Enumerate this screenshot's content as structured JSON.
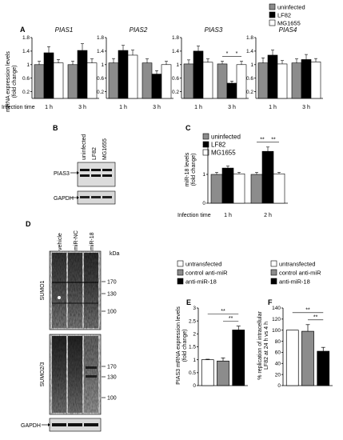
{
  "panels": {
    "A": {
      "label": "A",
      "ylabel": [
        "mRNA expression levels",
        "(fold change)"
      ],
      "legend": [
        {
          "name": "uninfected",
          "color": "#8c8c8c"
        },
        {
          "name": "LF82",
          "color": "#000000"
        },
        {
          "name": "MG1655",
          "color": "#ffffff"
        }
      ],
      "infection_label": "Infection time",
      "time_labels": [
        "1 h",
        "3 h"
      ]
    },
    "B": {
      "label": "B",
      "lanes": [
        "uninfected",
        "LF82",
        "MG1655"
      ],
      "bands": [
        "PIAS3",
        "GAPDH"
      ]
    },
    "C": {
      "label": "C",
      "ylabel": [
        "miR-18 levels",
        "(fold change)"
      ],
      "legend": [
        {
          "name": "uninfected",
          "color": "#8c8c8c"
        },
        {
          "name": "LF82",
          "color": "#000000"
        },
        {
          "name": "MG1655",
          "color": "#ffffff"
        }
      ],
      "infection_label": "Infection time",
      "time_labels": [
        "1 h",
        "2 h"
      ]
    },
    "D": {
      "label": "D",
      "lanes": [
        "vehicle",
        "miR-NC",
        "miR-18"
      ],
      "kda": "kDa",
      "blot_labels": [
        "SUMO1",
        "SUMO2/3",
        "GAPDH"
      ],
      "markers_top": [
        "170",
        "130",
        "100"
      ],
      "markers_bottom": [
        "170",
        "130",
        "100"
      ]
    },
    "E": {
      "label": "E",
      "ylabel": [
        "PIAS3 mRNA expression levels",
        "(fold change)"
      ],
      "legend": [
        {
          "name": "untransfected",
          "color": "#ffffff"
        },
        {
          "name": "control anti-miR",
          "color": "#8c8c8c"
        },
        {
          "name": "anti-miR-18",
          "color": "#000000"
        }
      ]
    },
    "F": {
      "label": "F",
      "ylabel": [
        "% replication of intracellular",
        "LF82 at 24 h vs 4 h"
      ],
      "legend": [
        {
          "name": "untransfected",
          "color": "#ffffff"
        },
        {
          "name": "control anti-miR",
          "color": "#8c8c8c"
        },
        {
          "name": "anti-miR-18",
          "color": "#000000"
        }
      ]
    }
  },
  "chart_data": [
    {
      "type": "bar",
      "panel": "A",
      "title": "PIAS1",
      "categories": [
        "1 h",
        "3 h"
      ],
      "ylim": [
        0,
        1.8
      ],
      "yticks": [
        "0.2",
        "0.6",
        "1",
        "1.4",
        "1.8"
      ],
      "series": [
        {
          "name": "uninfected",
          "values": [
            1.0,
            1.0
          ],
          "errors": [
            0.1,
            0.1
          ]
        },
        {
          "name": "LF82",
          "values": [
            1.35,
            1.42
          ],
          "errors": [
            0.18,
            0.2
          ]
        },
        {
          "name": "MG1655",
          "values": [
            1.05,
            1.05
          ],
          "errors": [
            0.1,
            0.12
          ]
        }
      ],
      "significance": []
    },
    {
      "type": "bar",
      "panel": "A",
      "title": "PIAS2",
      "categories": [
        "1 h",
        "3 h"
      ],
      "ylim": [
        0,
        1.8
      ],
      "yticks": [
        "0.2",
        "0.6",
        "1",
        "1.4",
        "1.8"
      ],
      "series": [
        {
          "name": "uninfected",
          "values": [
            1.05,
            1.05
          ],
          "errors": [
            0.13,
            0.12
          ]
        },
        {
          "name": "LF82",
          "values": [
            1.42,
            0.72
          ],
          "errors": [
            0.15,
            0.1
          ]
        },
        {
          "name": "MG1655",
          "values": [
            1.28,
            1.0
          ],
          "errors": [
            0.15,
            0.1
          ]
        }
      ],
      "significance": []
    },
    {
      "type": "bar",
      "panel": "A",
      "title": "PIAS3",
      "categories": [
        "1 h",
        "3 h"
      ],
      "ylim": [
        0,
        1.8
      ],
      "yticks": [
        "0.2",
        "0.6",
        "1",
        "1.4",
        "1.8"
      ],
      "series": [
        {
          "name": "uninfected",
          "values": [
            1.02,
            1.02
          ],
          "errors": [
            0.12,
            0.08
          ]
        },
        {
          "name": "LF82",
          "values": [
            1.4,
            0.45
          ],
          "errors": [
            0.15,
            0.06
          ]
        },
        {
          "name": "MG1655",
          "values": [
            1.07,
            1.0
          ],
          "errors": [
            0.1,
            0.1
          ]
        }
      ],
      "significance": [
        {
          "from": [
            1,
            0
          ],
          "to": [
            1,
            1
          ],
          "label": "*"
        },
        {
          "from": [
            1,
            1
          ],
          "to": [
            1,
            2
          ],
          "label": "*"
        }
      ]
    },
    {
      "type": "bar",
      "panel": "A",
      "title": "PIAS4",
      "categories": [
        "1 h",
        "3 h"
      ],
      "ylim": [
        0,
        1.8
      ],
      "yticks": [
        "0.2",
        "0.6",
        "1",
        "1.4",
        "1.8"
      ],
      "series": [
        {
          "name": "uninfected",
          "values": [
            1.05,
            1.05
          ],
          "errors": [
            0.15,
            0.12
          ]
        },
        {
          "name": "LF82",
          "values": [
            1.28,
            1.15
          ],
          "errors": [
            0.15,
            0.15
          ]
        },
        {
          "name": "MG1655",
          "values": [
            1.02,
            1.08
          ],
          "errors": [
            0.1,
            0.1
          ]
        }
      ],
      "significance": []
    },
    {
      "type": "bar",
      "panel": "C",
      "title": "",
      "categories": [
        "1 h",
        "2 h"
      ],
      "ylim": [
        0,
        2
      ],
      "yticks": [
        "0",
        "1",
        "2"
      ],
      "series": [
        {
          "name": "uninfected",
          "values": [
            1.0,
            1.0
          ],
          "errors": [
            0.07,
            0.07
          ]
        },
        {
          "name": "LF82",
          "values": [
            1.22,
            1.8
          ],
          "errors": [
            0.07,
            0.15
          ]
        },
        {
          "name": "MG1655",
          "values": [
            1.02,
            1.02
          ],
          "errors": [
            0.05,
            0.05
          ]
        }
      ],
      "significance": [
        {
          "from": [
            1,
            0
          ],
          "to": [
            1,
            1
          ],
          "label": "**"
        },
        {
          "from": [
            1,
            1
          ],
          "to": [
            1,
            2
          ],
          "label": "**"
        }
      ]
    },
    {
      "type": "bar",
      "panel": "E",
      "title": "",
      "categories": [
        "untransfected",
        "control anti-miR",
        "anti-miR-18"
      ],
      "ylim": [
        0,
        3
      ],
      "yticks": [
        "0",
        "0.5",
        "1",
        "1.5",
        "2",
        "2.5",
        "3"
      ],
      "values": [
        1.0,
        0.95,
        2.15
      ],
      "errors": [
        0.02,
        0.12,
        0.15
      ],
      "colors": [
        "#ffffff",
        "#8c8c8c",
        "#000000"
      ],
      "significance": [
        {
          "from": 0,
          "to": 2,
          "label": "**"
        },
        {
          "from": 1,
          "to": 2,
          "label": "**"
        }
      ]
    },
    {
      "type": "bar",
      "panel": "F",
      "title": "",
      "categories": [
        "untransfected",
        "control anti-miR",
        "anti-miR-18"
      ],
      "ylim": [
        0,
        140
      ],
      "yticks": [
        "0",
        "20",
        "40",
        "60",
        "80",
        "100",
        "120",
        "140"
      ],
      "values": [
        100,
        98,
        62
      ],
      "errors": [
        0,
        12,
        7
      ],
      "colors": [
        "#ffffff",
        "#8c8c8c",
        "#000000"
      ],
      "significance": [
        {
          "from": 0,
          "to": 2,
          "label": "**"
        },
        {
          "from": 1,
          "to": 2,
          "label": "**"
        }
      ]
    }
  ]
}
